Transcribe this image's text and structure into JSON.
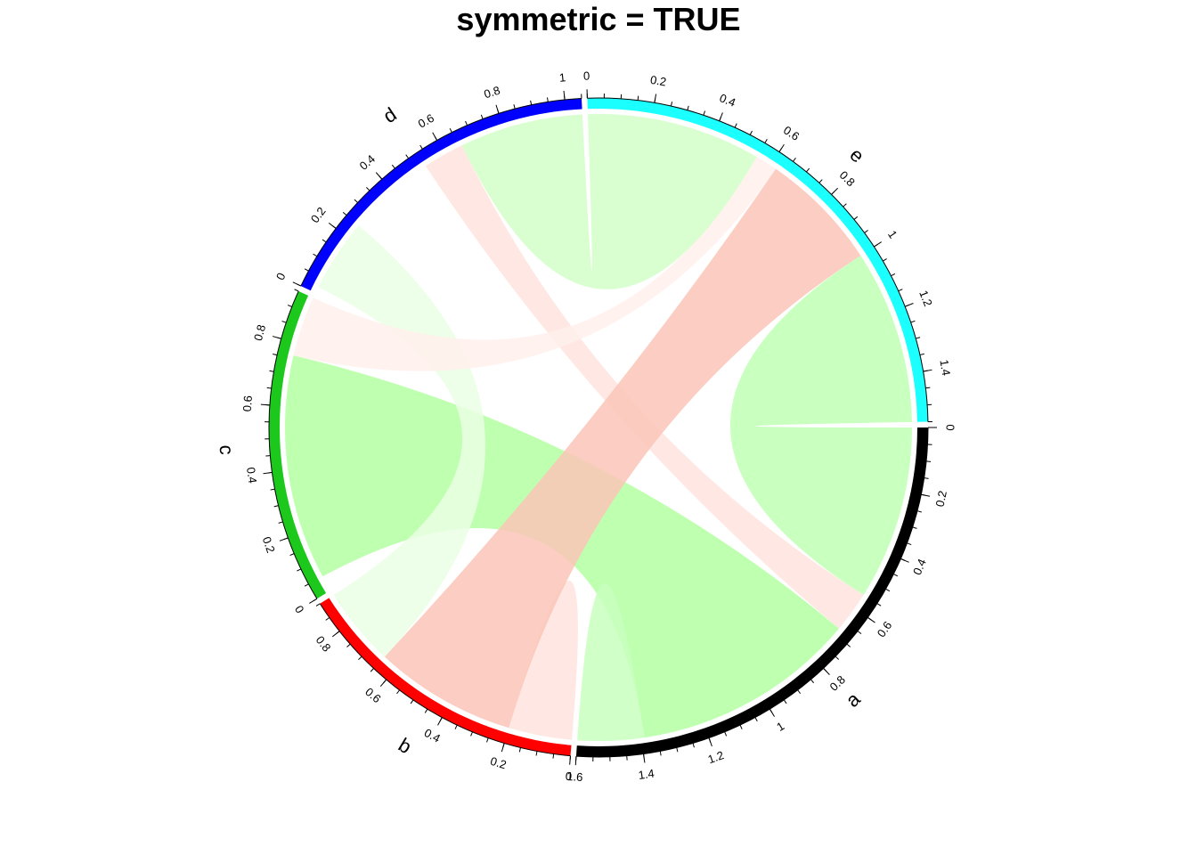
{
  "chart_data": {
    "type": "chord",
    "title": "symmetric = TRUE",
    "sectors": [
      {
        "name": "a",
        "color": "#000000",
        "xlim": [
          0,
          1.6
        ],
        "major_ticks": [
          "0",
          "0.2",
          "0.4",
          "0.6",
          "0.8",
          "1",
          "1.2",
          "1.4",
          "1.6"
        ]
      },
      {
        "name": "b",
        "color": "#FF0000",
        "xlim": [
          0,
          0.9
        ],
        "major_ticks": [
          "0",
          "0.2",
          "0.4",
          "0.6",
          "0.8"
        ]
      },
      {
        "name": "c",
        "color": "#1CC81C",
        "xlim": [
          0,
          0.95
        ],
        "major_ticks": [
          "0",
          "0.2",
          "0.4",
          "0.6",
          "0.8"
        ]
      },
      {
        "name": "d",
        "color": "#0000FF",
        "xlim": [
          0,
          1.05
        ],
        "major_ticks": [
          "0",
          "0.2",
          "0.4",
          "0.6",
          "0.8",
          "1"
        ]
      },
      {
        "name": "e",
        "color": "#1CFFFF",
        "xlim": [
          0,
          1.55
        ],
        "major_ticks": [
          "0",
          "0.2",
          "0.4",
          "0.6",
          "0.8",
          "1",
          "1.2",
          "1.4"
        ]
      }
    ],
    "links": [
      {
        "from": "a",
        "from_range": [
          0.0,
          0.55
        ],
        "to": "e",
        "to_range": [
          1.0,
          1.55
        ],
        "value": 0.55,
        "color": "#C0FFB4"
      },
      {
        "from": "a",
        "from_range": [
          0.55,
          0.68
        ],
        "to": "d",
        "to_range": [
          0.53,
          0.66
        ],
        "value": 0.13,
        "color": "#FFE4DE"
      },
      {
        "from": "a",
        "from_range": [
          0.68,
          1.39
        ],
        "to": "c",
        "to_range": [
          0.05,
          0.76
        ],
        "value": 0.71,
        "color": "#B4FFA2"
      },
      {
        "from": "a",
        "from_range": [
          1.39,
          1.57
        ],
        "to": "a",
        "to_range": [
          1.57,
          1.6
        ],
        "value": 0.18,
        "color": "#C8FFBE"
      },
      {
        "from": "b",
        "from_range": [
          0.0,
          0.1
        ],
        "to": "b",
        "to_range": [
          0.1,
          0.2
        ],
        "value": 0.1,
        "color": "#FFE4DE"
      },
      {
        "from": "b",
        "from_range": [
          0.2,
          0.65
        ],
        "to": "e",
        "to_range": [
          0.62,
          1.0
        ],
        "value": 0.45,
        "color": "#FCC6B8"
      },
      {
        "from": "b",
        "from_range": [
          0.65,
          0.9
        ],
        "to": "d",
        "to_range": [
          0.02,
          0.25
        ],
        "value": 0.25,
        "color": "#EAFFE4"
      },
      {
        "from": "c",
        "from_range": [
          0.76,
          0.95
        ],
        "to": "e",
        "to_range": [
          0.55,
          0.62
        ],
        "value": 0.12,
        "color": "#FFF0EC"
      },
      {
        "from": "d",
        "from_range": [
          0.66,
          1.05
        ],
        "to": "e",
        "to_range": [
          0.0,
          0.55
        ],
        "value": 0.45,
        "color": "#D2FFC8"
      }
    ]
  }
}
